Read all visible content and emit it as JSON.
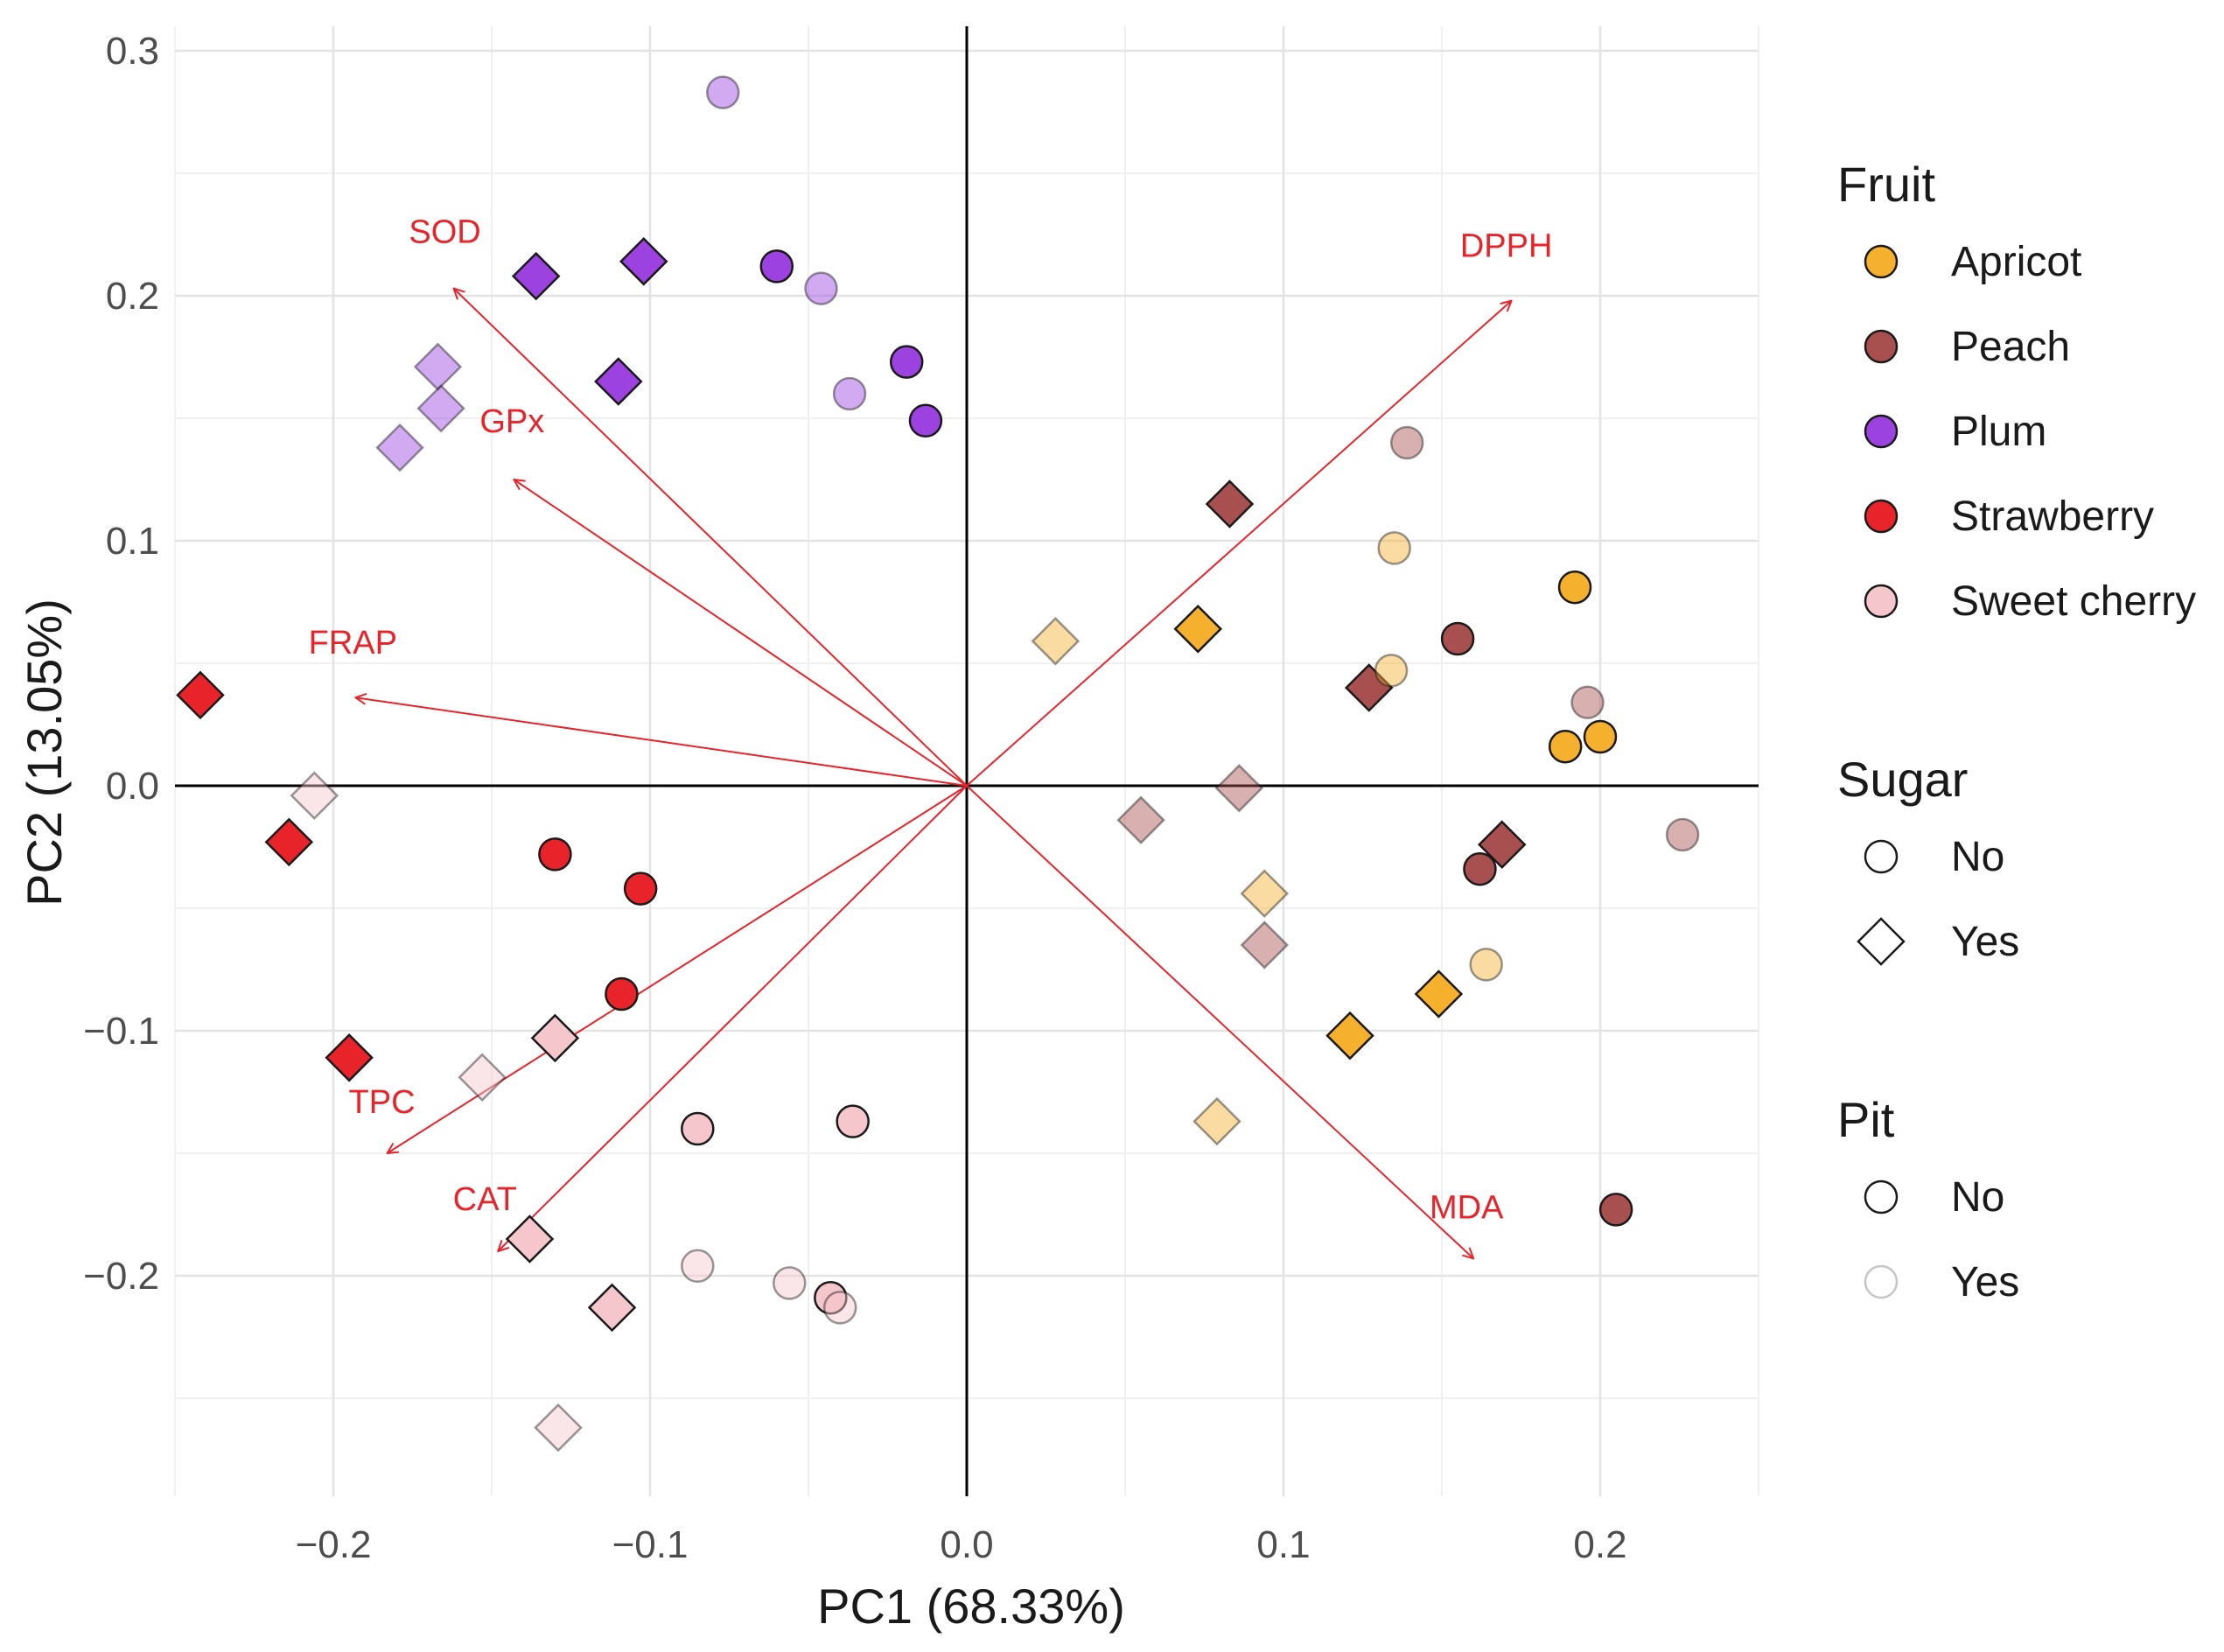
{
  "chart_data": {
    "type": "scatter",
    "subtype": "pca-biplot",
    "title": "",
    "xlabel": "PC1 (68.33%)",
    "ylabel": "PC2 (13.05%)",
    "xlim": [
      -0.25,
      0.25
    ],
    "ylim": [
      -0.29,
      0.31
    ],
    "xticks": [
      -0.2,
      -0.1,
      0.0,
      0.1,
      0.2
    ],
    "xtick_labels": [
      "−0.2",
      "−0.1",
      "0.0",
      "0.1",
      "0.2"
    ],
    "yticks": [
      -0.2,
      -0.1,
      0.0,
      0.1,
      0.2,
      0.3
    ],
    "ytick_labels": [
      "−0.2",
      "−0.1",
      "0.0",
      "0.1",
      "0.2",
      "0.3"
    ],
    "grid": true,
    "reference_lines": {
      "x": 0,
      "y": 0
    },
    "colors": {
      "Apricot": "#f5b02e",
      "Peach": "#a8504f",
      "Plum": "#9b42e0",
      "Strawberry": "#e8242a",
      "Sweet cherry": "#f5c6cc",
      "arrow": "#e8242a"
    },
    "legend": {
      "placement": "right",
      "groups": [
        {
          "title": "Fruit",
          "kind": "fruit",
          "items": [
            "Apricot",
            "Peach",
            "Plum",
            "Strawberry",
            "Sweet cherry"
          ]
        },
        {
          "title": "Sugar",
          "kind": "sugar",
          "items": [
            "No",
            "Yes"
          ]
        },
        {
          "title": "Pit",
          "kind": "pit",
          "items": [
            "No",
            "Yes"
          ]
        }
      ]
    },
    "loadings": [
      {
        "label": "DPPH",
        "x": 0.172,
        "y": 0.198
      },
      {
        "label": "SOD",
        "x": -0.162,
        "y": 0.203
      },
      {
        "label": "GPx",
        "x": -0.143,
        "y": 0.125
      },
      {
        "label": "FRAP",
        "x": -0.193,
        "y": 0.036
      },
      {
        "label": "TPC",
        "x": -0.183,
        "y": -0.15
      },
      {
        "label": "CAT",
        "x": -0.148,
        "y": -0.19
      },
      {
        "label": "MDA",
        "x": 0.16,
        "y": -0.193
      }
    ],
    "points": [
      {
        "fruit": "Plum",
        "sugar": "No",
        "pit": "Yes",
        "x": -0.077,
        "y": 0.283
      },
      {
        "fruit": "Plum",
        "sugar": "Yes",
        "pit": "No",
        "x": -0.136,
        "y": 0.208
      },
      {
        "fruit": "Plum",
        "sugar": "Yes",
        "pit": "No",
        "x": -0.102,
        "y": 0.214
      },
      {
        "fruit": "Plum",
        "sugar": "No",
        "pit": "No",
        "x": -0.06,
        "y": 0.212
      },
      {
        "fruit": "Plum",
        "sugar": "No",
        "pit": "Yes",
        "x": -0.046,
        "y": 0.203
      },
      {
        "fruit": "Plum",
        "sugar": "Yes",
        "pit": "Yes",
        "x": -0.167,
        "y": 0.171
      },
      {
        "fruit": "Plum",
        "sugar": "Yes",
        "pit": "Yes",
        "x": -0.166,
        "y": 0.154
      },
      {
        "fruit": "Plum",
        "sugar": "Yes",
        "pit": "Yes",
        "x": -0.179,
        "y": 0.138
      },
      {
        "fruit": "Plum",
        "sugar": "Yes",
        "pit": "No",
        "x": -0.11,
        "y": 0.165
      },
      {
        "fruit": "Plum",
        "sugar": "No",
        "pit": "Yes",
        "x": -0.037,
        "y": 0.16
      },
      {
        "fruit": "Plum",
        "sugar": "No",
        "pit": "No",
        "x": -0.019,
        "y": 0.173
      },
      {
        "fruit": "Plum",
        "sugar": "No",
        "pit": "No",
        "x": -0.013,
        "y": 0.149
      },
      {
        "fruit": "Peach",
        "sugar": "No",
        "pit": "Yes",
        "x": 0.139,
        "y": 0.14
      },
      {
        "fruit": "Peach",
        "sugar": "Yes",
        "pit": "No",
        "x": 0.083,
        "y": 0.115
      },
      {
        "fruit": "Peach",
        "sugar": "No",
        "pit": "No",
        "x": 0.155,
        "y": 0.06
      },
      {
        "fruit": "Peach",
        "sugar": "Yes",
        "pit": "No",
        "x": 0.127,
        "y": 0.04
      },
      {
        "fruit": "Peach",
        "sugar": "No",
        "pit": "Yes",
        "x": 0.196,
        "y": 0.034
      },
      {
        "fruit": "Peach",
        "sugar": "Yes",
        "pit": "Yes",
        "x": 0.055,
        "y": -0.014
      },
      {
        "fruit": "Peach",
        "sugar": "Yes",
        "pit": "Yes",
        "x": 0.086,
        "y": -0.001
      },
      {
        "fruit": "Peach",
        "sugar": "Yes",
        "pit": "No",
        "x": 0.169,
        "y": -0.024
      },
      {
        "fruit": "Peach",
        "sugar": "No",
        "pit": "No",
        "x": 0.162,
        "y": -0.034
      },
      {
        "fruit": "Peach",
        "sugar": "No",
        "pit": "Yes",
        "x": 0.226,
        "y": -0.02
      },
      {
        "fruit": "Peach",
        "sugar": "Yes",
        "pit": "Yes",
        "x": 0.094,
        "y": -0.065
      },
      {
        "fruit": "Peach",
        "sugar": "No",
        "pit": "No",
        "x": 0.205,
        "y": -0.173
      },
      {
        "fruit": "Apricot",
        "sugar": "No",
        "pit": "Yes",
        "x": 0.135,
        "y": 0.097
      },
      {
        "fruit": "Apricot",
        "sugar": "No",
        "pit": "No",
        "x": 0.192,
        "y": 0.081
      },
      {
        "fruit": "Apricot",
        "sugar": "Yes",
        "pit": "Yes",
        "x": 0.028,
        "y": 0.059
      },
      {
        "fruit": "Apricot",
        "sugar": "Yes",
        "pit": "No",
        "x": 0.073,
        "y": 0.064
      },
      {
        "fruit": "Apricot",
        "sugar": "No",
        "pit": "Yes",
        "x": 0.134,
        "y": 0.047
      },
      {
        "fruit": "Apricot",
        "sugar": "No",
        "pit": "No",
        "x": 0.189,
        "y": 0.016
      },
      {
        "fruit": "Apricot",
        "sugar": "No",
        "pit": "No",
        "x": 0.2,
        "y": 0.02
      },
      {
        "fruit": "Apricot",
        "sugar": "Yes",
        "pit": "Yes",
        "x": 0.094,
        "y": -0.044
      },
      {
        "fruit": "Apricot",
        "sugar": "No",
        "pit": "Yes",
        "x": 0.164,
        "y": -0.073
      },
      {
        "fruit": "Apricot",
        "sugar": "Yes",
        "pit": "No",
        "x": 0.149,
        "y": -0.085
      },
      {
        "fruit": "Apricot",
        "sugar": "Yes",
        "pit": "No",
        "x": 0.121,
        "y": -0.102
      },
      {
        "fruit": "Apricot",
        "sugar": "Yes",
        "pit": "Yes",
        "x": 0.079,
        "y": -0.137
      },
      {
        "fruit": "Strawberry",
        "sugar": "Yes",
        "pit": "No",
        "x": -0.242,
        "y": 0.037
      },
      {
        "fruit": "Strawberry",
        "sugar": "Yes",
        "pit": "No",
        "x": -0.214,
        "y": -0.023
      },
      {
        "fruit": "Strawberry",
        "sugar": "No",
        "pit": "No",
        "x": -0.13,
        "y": -0.028
      },
      {
        "fruit": "Strawberry",
        "sugar": "No",
        "pit": "No",
        "x": -0.103,
        "y": -0.042
      },
      {
        "fruit": "Strawberry",
        "sugar": "No",
        "pit": "No",
        "x": -0.109,
        "y": -0.085
      },
      {
        "fruit": "Strawberry",
        "sugar": "Yes",
        "pit": "No",
        "x": -0.195,
        "y": -0.111
      },
      {
        "fruit": "Sweet cherry",
        "sugar": "Yes",
        "pit": "Yes",
        "x": -0.206,
        "y": -0.004
      },
      {
        "fruit": "Sweet cherry",
        "sugar": "Yes",
        "pit": "No",
        "x": -0.13,
        "y": -0.103
      },
      {
        "fruit": "Sweet cherry",
        "sugar": "Yes",
        "pit": "Yes",
        "x": -0.153,
        "y": -0.119
      },
      {
        "fruit": "Sweet cherry",
        "sugar": "No",
        "pit": "No",
        "x": -0.085,
        "y": -0.14
      },
      {
        "fruit": "Sweet cherry",
        "sugar": "No",
        "pit": "No",
        "x": -0.036,
        "y": -0.137
      },
      {
        "fruit": "Sweet cherry",
        "sugar": "Yes",
        "pit": "No",
        "x": -0.138,
        "y": -0.185
      },
      {
        "fruit": "Sweet cherry",
        "sugar": "No",
        "pit": "Yes",
        "x": -0.085,
        "y": -0.196
      },
      {
        "fruit": "Sweet cherry",
        "sugar": "No",
        "pit": "Yes",
        "x": -0.056,
        "y": -0.203
      },
      {
        "fruit": "Sweet cherry",
        "sugar": "No",
        "pit": "No",
        "x": -0.043,
        "y": -0.209
      },
      {
        "fruit": "Sweet cherry",
        "sugar": "No",
        "pit": "Yes",
        "x": -0.04,
        "y": -0.213
      },
      {
        "fruit": "Sweet cherry",
        "sugar": "Yes",
        "pit": "No",
        "x": -0.112,
        "y": -0.213
      },
      {
        "fruit": "Sweet cherry",
        "sugar": "Yes",
        "pit": "Yes",
        "x": -0.129,
        "y": -0.262
      }
    ]
  }
}
